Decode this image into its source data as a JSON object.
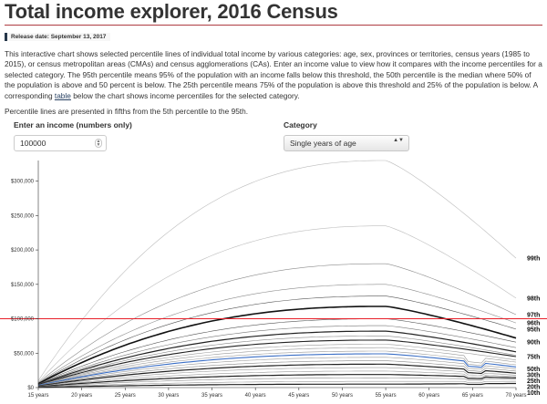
{
  "header": {
    "title": "Total income explorer, 2016 Census",
    "release_date": "Release date: September 13, 2017"
  },
  "intro": {
    "before_link": "This interactive chart shows selected percentile lines of individual total income by various categories: age, sex, provinces or territories, census years (1985 to 2015), or census metropolitan areas (CMAs) and census agglomerations (CAs). Enter an income value to view how it compares with the income percentiles for a selected category. The 95th percentile means 95% of the population with an income falls below this threshold, the 50th percentile is the median where 50% of the population is above and 50 percent is below. The 25th percentile means 75% of the population is above this threshold and 25% of the population is below. A corresponding ",
    "link_text": "table",
    "after_link": " below the chart shows income percentiles for the selected category.",
    "note": "Percentile lines are presented in fifths from the 5th percentile to the 95th."
  },
  "controls": {
    "income_label": "Enter an income (numbers only)",
    "income_value": "100000",
    "category_label": "Category",
    "category_value": "Single years of age",
    "category_arrow": "▲▼"
  },
  "chart_data": {
    "type": "line",
    "x_ticks": [
      "15 years",
      "20 years",
      "25 years",
      "30 years",
      "35 years",
      "40 years",
      "45 years",
      "50 years",
      "55 years",
      "60 years",
      "65 years",
      "70 years"
    ],
    "x_range": [
      15,
      70
    ],
    "y_ticks": [
      "$0",
      "$50,000",
      "$100,000",
      "$150,000",
      "$200,000",
      "$250,000",
      "$300,000"
    ],
    "y_range": [
      0,
      330000
    ],
    "reference_line": {
      "value": 100000,
      "color": "#e8202a"
    },
    "highlight_color": "#3b6fc6",
    "series_labels": [
      {
        "name": "99th",
        "value": 188000
      },
      {
        "name": "98th",
        "value": 130000
      },
      {
        "name": "97th",
        "value": 106000
      },
      {
        "name": "96th",
        "value": 94000
      },
      {
        "name": "95th",
        "value": 85000
      },
      {
        "name": "90th",
        "value": 66000
      },
      {
        "name": "75th",
        "value": 45000
      },
      {
        "name": "50th",
        "value": 27000
      },
      {
        "name": "30th",
        "value": 21000
      },
      {
        "name": "25th",
        "value": 16000
      },
      {
        "name": "20th",
        "value": 12000
      },
      {
        "name": "10th",
        "value": 6000
      }
    ]
  }
}
